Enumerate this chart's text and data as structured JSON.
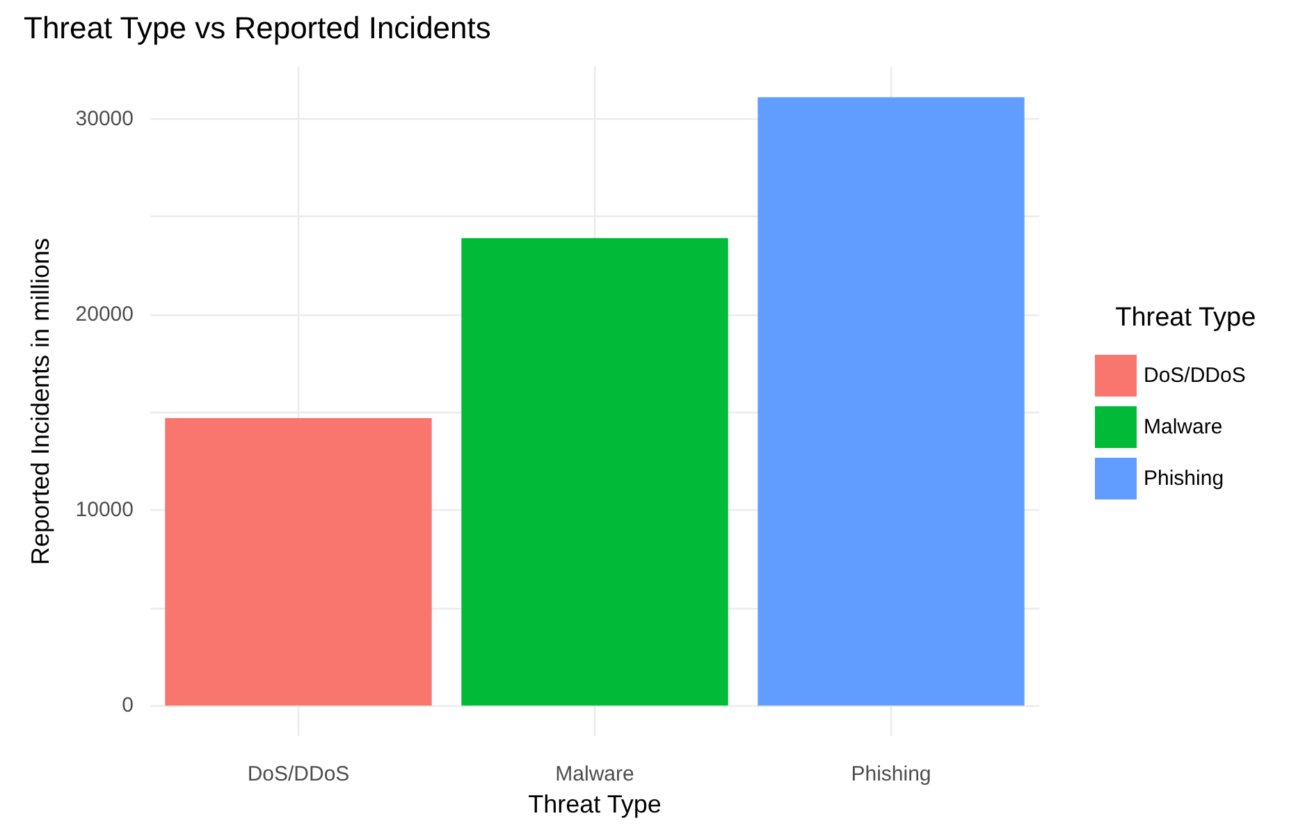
{
  "chart_data": {
    "type": "bar",
    "title": "Threat Type vs Reported Incidents",
    "xlabel": "Threat Type",
    "ylabel": "Reported Incidents in millions",
    "legend_title": "Threat Type",
    "categories": [
      "DoS/DDoS",
      "Malware",
      "Phishing"
    ],
    "series": [
      {
        "name": "DoS/DDoS",
        "color": "#f8766d",
        "values": [
          14700,
          null,
          null
        ]
      },
      {
        "name": "Malware",
        "color": "#00ba38",
        "values": [
          null,
          23900,
          null
        ]
      },
      {
        "name": "Phishing",
        "color": "#619cff",
        "values": [
          null,
          null,
          31100
        ]
      }
    ],
    "stacked": true,
    "ylim": [
      -1555,
      32655
    ],
    "yticks": [
      0,
      {
        "value": 5000,
        "label": null
      },
      10000,
      {
        "value": 15000,
        "label": null
      },
      20000,
      {
        "value": 25000,
        "label": null
      },
      30000
    ],
    "grid": true,
    "legend": "right"
  }
}
